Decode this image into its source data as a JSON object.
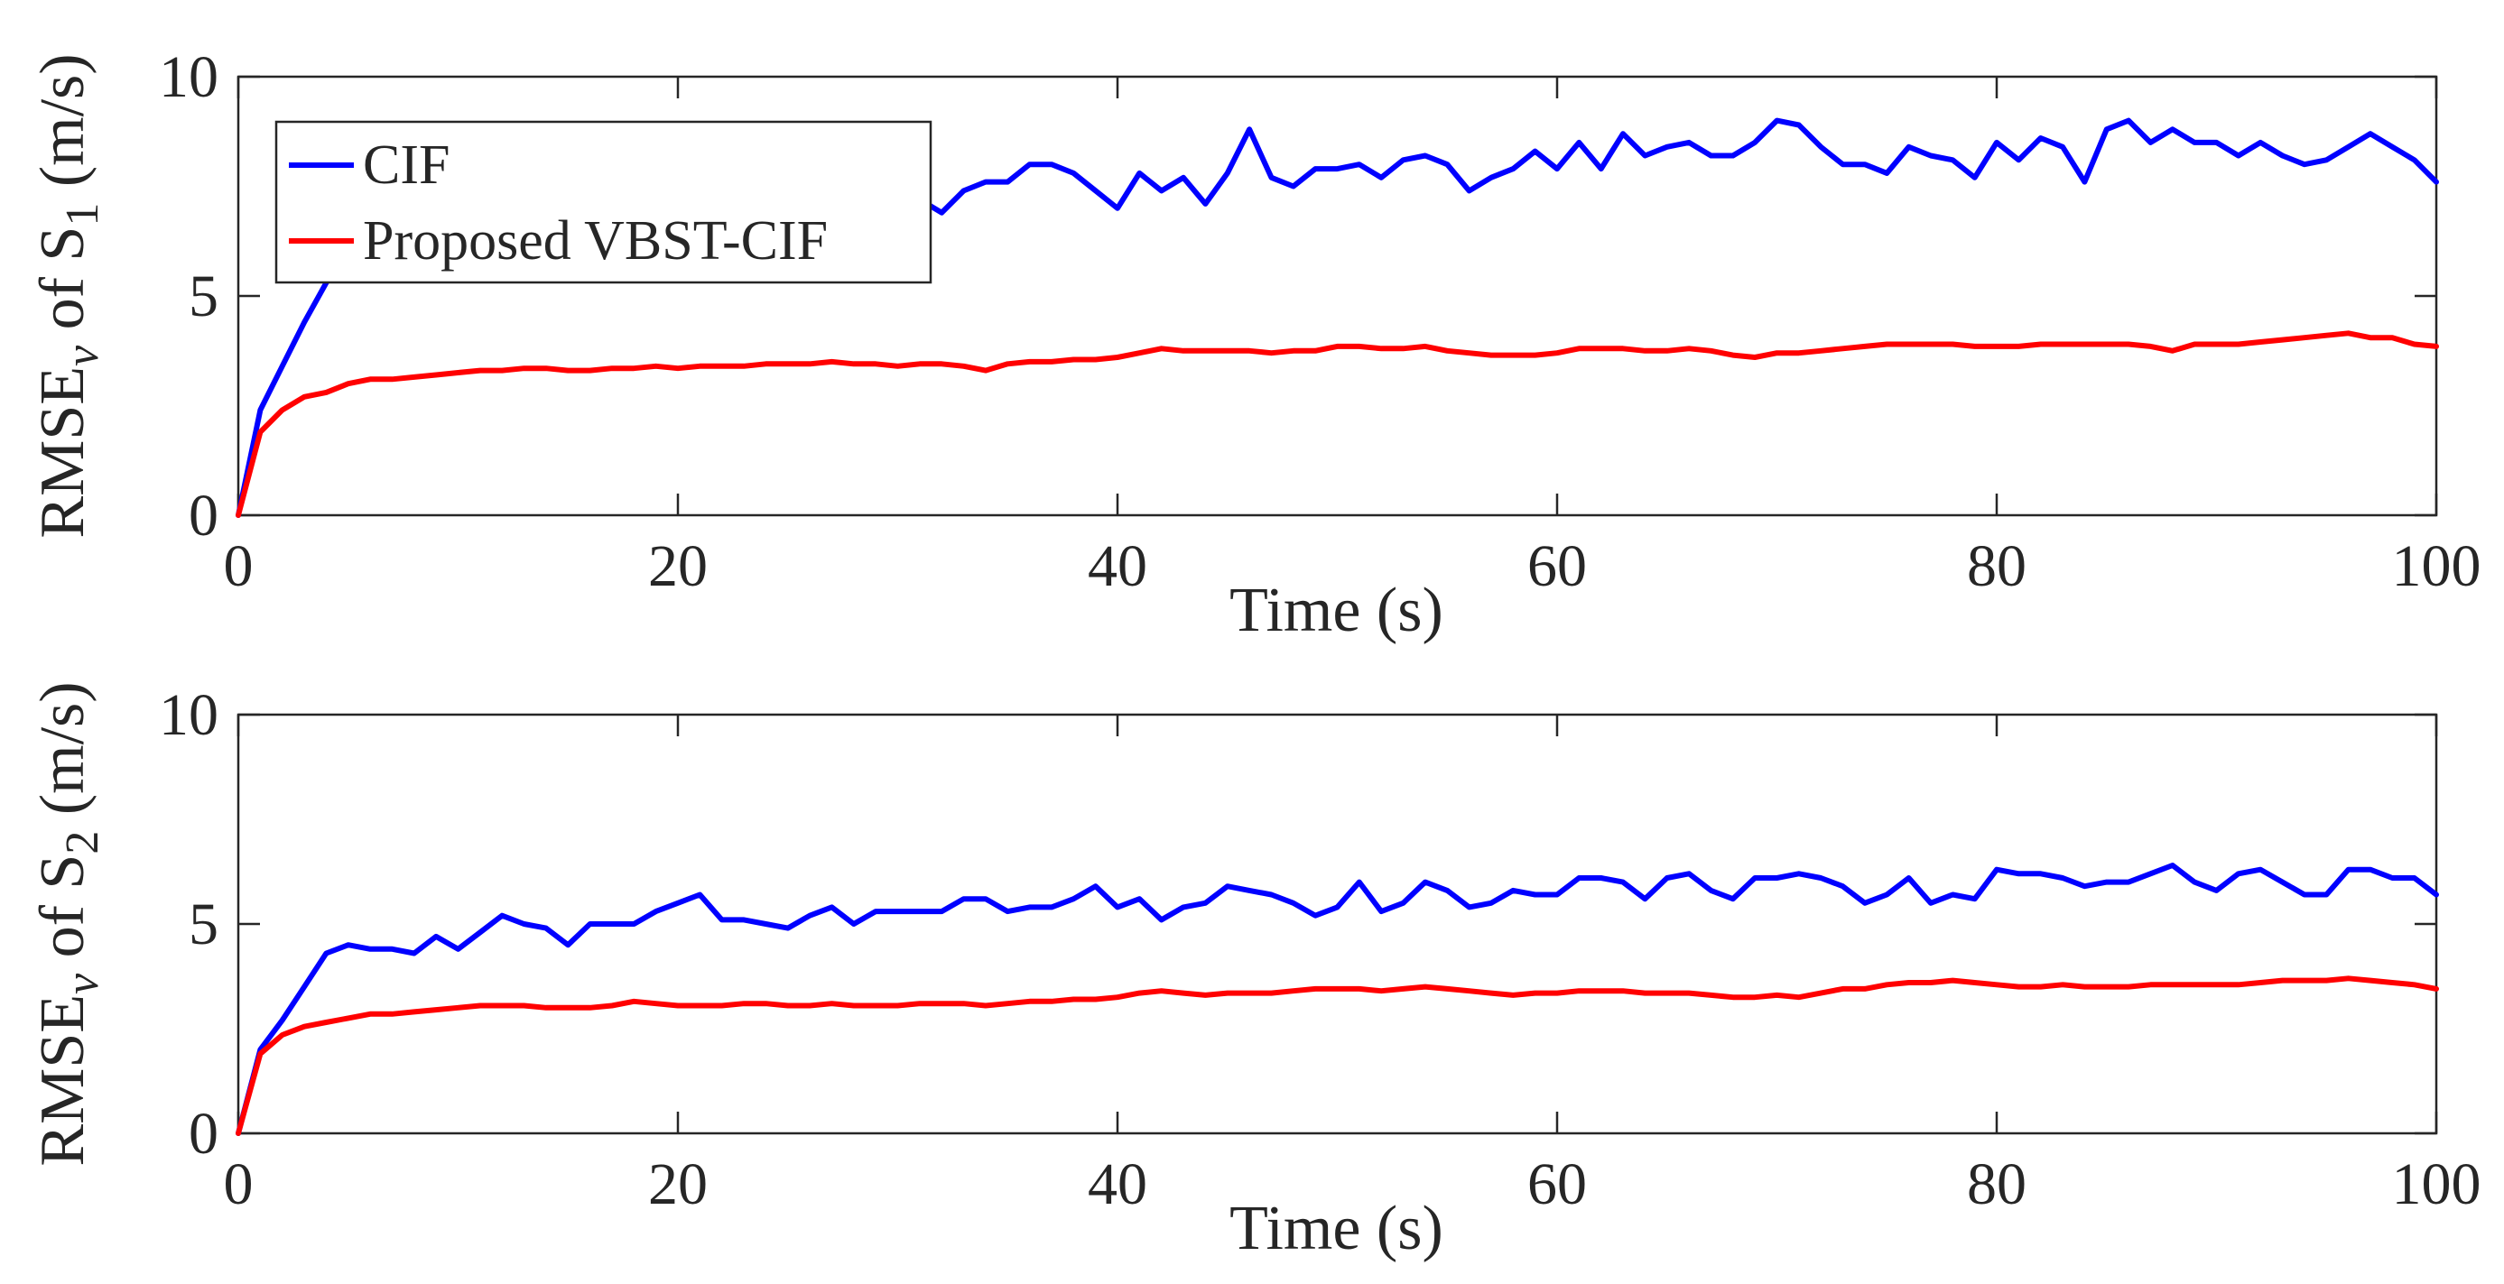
{
  "chart_data": [
    {
      "type": "line",
      "xlabel": "Time (s)",
      "ylabel": {
        "main": "RMSE",
        "sub": "v",
        "mid": " of S",
        "sub2": "1",
        "unit": " (m/s)"
      },
      "xlim": [
        0,
        100
      ],
      "ylim": [
        0,
        10
      ],
      "xticks": [
        "0",
        "20",
        "40",
        "60",
        "80",
        "100"
      ],
      "yticks": [
        "0",
        "5",
        "10"
      ],
      "grid": false,
      "legend_position": "top-left",
      "x": [
        0,
        1,
        2,
        3,
        4,
        5,
        6,
        7,
        8,
        9,
        10,
        11,
        12,
        13,
        14,
        15,
        16,
        17,
        18,
        19,
        20,
        21,
        22,
        23,
        24,
        25,
        26,
        27,
        28,
        29,
        30,
        31,
        32,
        33,
        34,
        35,
        36,
        37,
        38,
        39,
        40,
        41,
        42,
        43,
        44,
        45,
        46,
        47,
        48,
        49,
        50,
        51,
        52,
        53,
        54,
        55,
        56,
        57,
        58,
        59,
        60,
        61,
        62,
        63,
        64,
        65,
        66,
        67,
        68,
        69,
        70,
        71,
        72,
        73,
        74,
        75,
        76,
        77,
        78,
        79,
        80,
        81,
        82,
        83,
        84,
        85,
        86,
        87,
        88,
        89,
        90,
        91,
        92,
        93,
        94,
        95,
        96,
        97,
        98,
        99,
        100
      ],
      "series": [
        {
          "name": "CIF",
          "color": "#0000ff",
          "values": [
            0,
            2.4,
            3.4,
            4.4,
            5.3,
            6.1,
            6.7,
            7.0,
            7.0,
            7.1,
            7.0,
            7.1,
            7.2,
            7.1,
            7.3,
            7.2,
            7.3,
            7.2,
            7.3,
            7.4,
            7.3,
            7.3,
            7.2,
            7.3,
            7.3,
            7.2,
            7.3,
            7.3,
            7.2,
            7.2,
            7.1,
            7.2,
            6.9,
            7.4,
            7.6,
            7.6,
            8.0,
            8.0,
            7.8,
            7.4,
            7.0,
            7.8,
            7.4,
            7.7,
            7.1,
            7.8,
            8.8,
            7.7,
            7.5,
            7.9,
            7.9,
            8.0,
            7.7,
            8.1,
            8.2,
            8.0,
            7.4,
            7.7,
            7.9,
            8.3,
            7.9,
            8.5,
            7.9,
            8.7,
            8.2,
            8.4,
            8.5,
            8.2,
            8.2,
            8.5,
            9.0,
            8.9,
            8.4,
            8.0,
            8.0,
            7.8,
            8.4,
            8.2,
            8.1,
            7.7,
            8.5,
            8.1,
            8.6,
            8.4,
            7.6,
            8.8,
            9.0,
            8.5,
            8.8,
            8.5,
            8.5,
            8.2,
            8.5,
            8.2,
            8.0,
            8.1,
            8.4,
            8.7,
            8.4,
            8.1,
            7.6
          ]
        },
        {
          "name": "Proposed VBST-CIF",
          "color": "#ff0000",
          "values": [
            0,
            1.9,
            2.4,
            2.7,
            2.8,
            3.0,
            3.1,
            3.1,
            3.15,
            3.2,
            3.25,
            3.3,
            3.3,
            3.35,
            3.35,
            3.3,
            3.3,
            3.35,
            3.35,
            3.4,
            3.35,
            3.4,
            3.4,
            3.4,
            3.45,
            3.45,
            3.45,
            3.5,
            3.45,
            3.45,
            3.4,
            3.45,
            3.45,
            3.4,
            3.3,
            3.45,
            3.5,
            3.5,
            3.55,
            3.55,
            3.6,
            3.7,
            3.8,
            3.75,
            3.75,
            3.75,
            3.75,
            3.7,
            3.75,
            3.75,
            3.85,
            3.85,
            3.8,
            3.8,
            3.85,
            3.75,
            3.7,
            3.65,
            3.65,
            3.65,
            3.7,
            3.8,
            3.8,
            3.8,
            3.75,
            3.75,
            3.8,
            3.75,
            3.65,
            3.6,
            3.7,
            3.7,
            3.75,
            3.8,
            3.85,
            3.9,
            3.9,
            3.9,
            3.9,
            3.85,
            3.85,
            3.85,
            3.9,
            3.9,
            3.9,
            3.9,
            3.9,
            3.85,
            3.75,
            3.9,
            3.9,
            3.9,
            3.95,
            4.0,
            4.05,
            4.1,
            4.15,
            4.05,
            4.05,
            3.9,
            3.85
          ]
        }
      ],
      "legend": [
        "CIF",
        "Proposed VBST-CIF"
      ]
    },
    {
      "type": "line",
      "xlabel": "Time (s)",
      "ylabel": {
        "main": "RMSE",
        "sub": "v",
        "mid": " of S",
        "sub2": "2",
        "unit": " (m/s)"
      },
      "xlim": [
        0,
        100
      ],
      "ylim": [
        0,
        10
      ],
      "xticks": [
        "0",
        "20",
        "40",
        "60",
        "80",
        "100"
      ],
      "yticks": [
        "0",
        "5",
        "10"
      ],
      "grid": false,
      "x": [
        0,
        1,
        2,
        3,
        4,
        5,
        6,
        7,
        8,
        9,
        10,
        11,
        12,
        13,
        14,
        15,
        16,
        17,
        18,
        19,
        20,
        21,
        22,
        23,
        24,
        25,
        26,
        27,
        28,
        29,
        30,
        31,
        32,
        33,
        34,
        35,
        36,
        37,
        38,
        39,
        40,
        41,
        42,
        43,
        44,
        45,
        46,
        47,
        48,
        49,
        50,
        51,
        52,
        53,
        54,
        55,
        56,
        57,
        58,
        59,
        60,
        61,
        62,
        63,
        64,
        65,
        66,
        67,
        68,
        69,
        70,
        71,
        72,
        73,
        74,
        75,
        76,
        77,
        78,
        79,
        80,
        81,
        82,
        83,
        84,
        85,
        86,
        87,
        88,
        89,
        90,
        91,
        92,
        93,
        94,
        95,
        96,
        97,
        98,
        99,
        100
      ],
      "series": [
        {
          "name": "CIF",
          "color": "#0000ff",
          "values": [
            0,
            2.0,
            2.7,
            3.5,
            4.3,
            4.5,
            4.4,
            4.4,
            4.3,
            4.7,
            4.4,
            4.8,
            5.2,
            5.0,
            4.9,
            4.5,
            5.0,
            5.0,
            5.0,
            5.3,
            5.5,
            5.7,
            5.1,
            5.1,
            5.0,
            4.9,
            5.2,
            5.4,
            5.0,
            5.3,
            5.3,
            5.3,
            5.3,
            5.6,
            5.6,
            5.3,
            5.4,
            5.4,
            5.6,
            5.9,
            5.4,
            5.6,
            5.1,
            5.4,
            5.5,
            5.9,
            5.8,
            5.7,
            5.5,
            5.2,
            5.4,
            6.0,
            5.3,
            5.5,
            6.0,
            5.8,
            5.4,
            5.5,
            5.8,
            5.7,
            5.7,
            6.1,
            6.1,
            6.0,
            5.6,
            6.1,
            6.2,
            5.8,
            5.6,
            6.1,
            6.1,
            6.2,
            6.1,
            5.9,
            5.5,
            5.7,
            6.1,
            5.5,
            5.7,
            5.6,
            6.3,
            6.2,
            6.2,
            6.1,
            5.9,
            6.0,
            6.0,
            6.2,
            6.4,
            6.0,
            5.8,
            6.2,
            6.3,
            6.0,
            5.7,
            5.7,
            6.3,
            6.3,
            6.1,
            6.1,
            5.7
          ]
        },
        {
          "name": "Proposed VBST-CIF",
          "color": "#ff0000",
          "values": [
            0,
            1.9,
            2.35,
            2.55,
            2.65,
            2.75,
            2.85,
            2.85,
            2.9,
            2.95,
            3.0,
            3.05,
            3.05,
            3.05,
            3.0,
            3.0,
            3.0,
            3.05,
            3.15,
            3.1,
            3.05,
            3.05,
            3.05,
            3.1,
            3.1,
            3.05,
            3.05,
            3.1,
            3.05,
            3.05,
            3.05,
            3.1,
            3.1,
            3.1,
            3.05,
            3.1,
            3.15,
            3.15,
            3.2,
            3.2,
            3.25,
            3.35,
            3.4,
            3.35,
            3.3,
            3.35,
            3.35,
            3.35,
            3.4,
            3.45,
            3.45,
            3.45,
            3.4,
            3.45,
            3.5,
            3.45,
            3.4,
            3.35,
            3.3,
            3.35,
            3.35,
            3.4,
            3.4,
            3.4,
            3.35,
            3.35,
            3.35,
            3.3,
            3.25,
            3.25,
            3.3,
            3.25,
            3.35,
            3.45,
            3.45,
            3.55,
            3.6,
            3.6,
            3.65,
            3.6,
            3.55,
            3.5,
            3.5,
            3.55,
            3.5,
            3.5,
            3.5,
            3.55,
            3.55,
            3.55,
            3.55,
            3.55,
            3.6,
            3.65,
            3.65,
            3.65,
            3.7,
            3.65,
            3.6,
            3.55,
            3.45
          ]
        }
      ]
    }
  ]
}
